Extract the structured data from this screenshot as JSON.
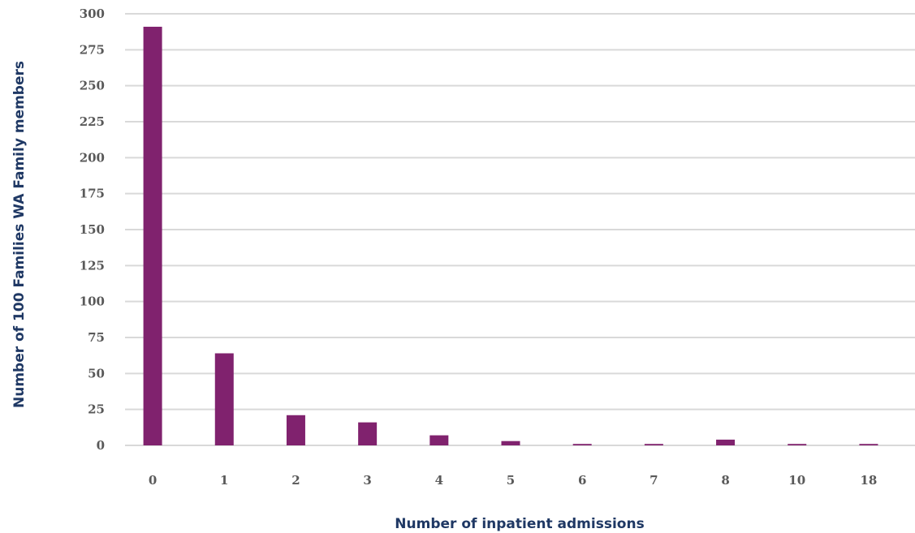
{
  "chart_data": {
    "type": "bar",
    "title": "",
    "xlabel": "Number of inpatient admissions",
    "ylabel": "Number of 100 Families WA Family members",
    "categories": [
      "0",
      "1",
      "2",
      "3",
      "4",
      "5",
      "6",
      "7",
      "8",
      "10",
      "18"
    ],
    "series": [
      {
        "values": [
          291,
          64,
          21,
          16,
          7,
          3,
          1,
          1,
          4,
          1,
          1
        ]
      }
    ],
    "ylim": [
      0,
      300
    ],
    "yticks": [
      "0",
      "25",
      "50",
      "75",
      "100",
      "125",
      "150",
      "175",
      "200",
      "225",
      "250",
      "275",
      "300"
    ],
    "grid": true,
    "legend": "none",
    "bar_color": "#80226e",
    "grid_color": "#d9d9d9",
    "tick_color": "#595959",
    "axis_title_color": "#1f3864"
  }
}
